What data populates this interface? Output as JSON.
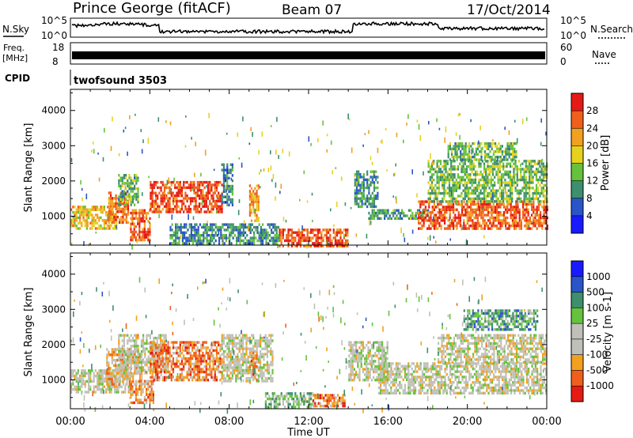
{
  "header": {
    "station": "Prince George (fitACF)",
    "beam": "Beam 07",
    "date": "17/Oct/2014"
  },
  "top_panels": {
    "nsky_label": "N.Sky",
    "nsearch_label": "N.Search",
    "noise_tick_top": "10^5",
    "noise_tick_bottom": "10^0",
    "freq_label_line1": "Freq.",
    "freq_label_line2": "[MHz]",
    "freq_ticks": [
      "18",
      "8"
    ],
    "nave_label": "Nave",
    "nave_ticks": [
      "60",
      "0"
    ],
    "cpid_label": "CPID",
    "cpid_value": "twofsound 3503"
  },
  "chart_data": [
    {
      "type": "heatmap",
      "name": "power",
      "ylabel": "Slant Range [km]",
      "xlabel": "Time UT",
      "ylim": [
        180,
        4600
      ],
      "xlim_hours": [
        0,
        24
      ],
      "x_tick_labels": [
        "00:00",
        "04:00",
        "08:00",
        "12:00",
        "16:00",
        "20:00",
        "00:00"
      ],
      "y_ticks": [
        1000,
        2000,
        3000,
        4000
      ],
      "colorbar": {
        "label": "Power [dB]",
        "ticks": [
          "28",
          "24",
          "20",
          "16",
          "12",
          "8",
          "4"
        ],
        "colors_low_to_high": [
          "#1a1aff",
          "#2a55c8",
          "#3d8f6e",
          "#66c23c",
          "#e6d21e",
          "#f2a020",
          "#f0601c",
          "#e61a14"
        ]
      },
      "regions": [
        {
          "t0": 0.0,
          "t1": 2.3,
          "r0": 650,
          "r1": 1300,
          "v": 0.62
        },
        {
          "t0": 1.9,
          "t1": 2.9,
          "r0": 850,
          "r1": 1700,
          "v": 0.78
        },
        {
          "t0": 2.4,
          "t1": 3.4,
          "r0": 1300,
          "r1": 2200,
          "v": 0.4
        },
        {
          "t0": 3.0,
          "t1": 4.0,
          "r0": 300,
          "r1": 1200,
          "v": 0.82
        },
        {
          "t0": 4.0,
          "t1": 7.6,
          "r0": 1100,
          "r1": 2000,
          "v": 0.86
        },
        {
          "t0": 7.6,
          "t1": 8.2,
          "r0": 1300,
          "r1": 2500,
          "v": 0.28
        },
        {
          "t0": 9.0,
          "t1": 9.5,
          "r0": 900,
          "r1": 1900,
          "v": 0.7
        },
        {
          "t0": 10.5,
          "t1": 14.0,
          "r0": 180,
          "r1": 650,
          "v": 0.85
        },
        {
          "t0": 5.0,
          "t1": 10.5,
          "r0": 200,
          "r1": 800,
          "v": 0.3
        },
        {
          "t0": 14.3,
          "t1": 15.5,
          "r0": 1300,
          "r1": 2300,
          "v": 0.3
        },
        {
          "t0": 15.0,
          "t1": 18.0,
          "r0": 900,
          "r1": 1200,
          "v": 0.35
        },
        {
          "t0": 17.5,
          "t1": 24.0,
          "r0": 650,
          "r1": 1450,
          "v": 0.83
        },
        {
          "t0": 18.0,
          "t1": 24.0,
          "r0": 1450,
          "r1": 2600,
          "v": 0.42
        },
        {
          "t0": 19.0,
          "t1": 22.5,
          "r0": 2600,
          "r1": 3100,
          "v": 0.4
        }
      ]
    },
    {
      "type": "heatmap",
      "name": "velocity",
      "ylabel": "Slant Range [km]",
      "xlabel": "Time UT",
      "ylim": [
        180,
        4600
      ],
      "xlim_hours": [
        0,
        24
      ],
      "x_tick_labels": [
        "00:00",
        "04:00",
        "08:00",
        "12:00",
        "16:00",
        "20:00",
        "00:00"
      ],
      "y_ticks": [
        1000,
        2000,
        3000,
        4000
      ],
      "colorbar": {
        "label": "Velocity [m s-1]",
        "ticks": [
          "1000",
          "500",
          "100",
          "25",
          "-25",
          "-100",
          "-500",
          "-1000"
        ],
        "colors_low_to_high": [
          "#e61a14",
          "#f0601c",
          "#f2a020",
          "#c0c0b8",
          "#c0c0b8",
          "#66c23c",
          "#3d8f6e",
          "#2a55c8",
          "#1a1aff"
        ]
      },
      "regions": [
        {
          "t0": 0.0,
          "t1": 3.0,
          "r0": 650,
          "r1": 1300,
          "v": 0.45
        },
        {
          "t0": 1.8,
          "t1": 3.6,
          "r0": 900,
          "r1": 1900,
          "v": 0.3
        },
        {
          "t0": 2.4,
          "t1": 4.8,
          "r0": 1200,
          "r1": 2300,
          "v": 0.46
        },
        {
          "t0": 3.0,
          "t1": 4.2,
          "r0": 350,
          "r1": 1000,
          "v": 0.24
        },
        {
          "t0": 4.0,
          "t1": 7.6,
          "r0": 1000,
          "r1": 2100,
          "v": 0.22
        },
        {
          "t0": 7.6,
          "t1": 10.2,
          "r0": 1000,
          "r1": 2300,
          "v": 0.45
        },
        {
          "t0": 9.0,
          "t1": 9.4,
          "r0": 900,
          "r1": 1800,
          "v": 0.25
        },
        {
          "t0": 9.8,
          "t1": 12.2,
          "r0": 250,
          "r1": 650,
          "v": 0.6
        },
        {
          "t0": 12.2,
          "t1": 13.8,
          "r0": 220,
          "r1": 600,
          "v": 0.2
        },
        {
          "t0": 14.0,
          "t1": 16.0,
          "r0": 1000,
          "r1": 2100,
          "v": 0.45
        },
        {
          "t0": 15.5,
          "t1": 24.0,
          "r0": 600,
          "r1": 1500,
          "v": 0.45
        },
        {
          "t0": 18.5,
          "t1": 24.0,
          "r0": 1500,
          "r1": 2300,
          "v": 0.44
        },
        {
          "t0": 19.8,
          "t1": 23.5,
          "r0": 2400,
          "r1": 3000,
          "v": 0.66
        }
      ]
    }
  ]
}
